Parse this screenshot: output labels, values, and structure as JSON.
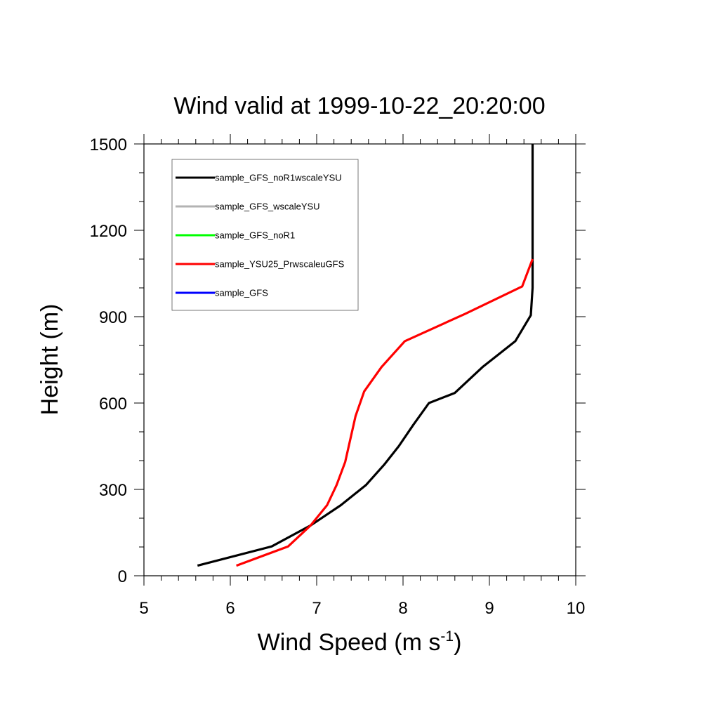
{
  "chart_data": {
    "type": "line",
    "title": "Wind valid at 1999-10-22_20:20:00",
    "xlabel": "Wind Speed (m s",
    "xlabel_superscript": "-1",
    "xlabel_suffix": ")",
    "ylabel": "Height (m)",
    "xlim": [
      5,
      10
    ],
    "ylim": [
      0,
      1500
    ],
    "x_ticks": [
      5,
      6,
      7,
      8,
      9,
      10
    ],
    "y_ticks": [
      0,
      300,
      600,
      900,
      1200,
      1500
    ],
    "grid": false,
    "legend_position": "top-left",
    "series": [
      {
        "name": "sample_GFS_noR1wscaleYSU",
        "color": "#000000",
        "points": [
          [
            5.62,
            35
          ],
          [
            6.48,
            102
          ],
          [
            6.93,
            175
          ],
          [
            7.28,
            245
          ],
          [
            7.57,
            315
          ],
          [
            7.78,
            385
          ],
          [
            7.95,
            450
          ],
          [
            8.12,
            525
          ],
          [
            8.3,
            600
          ],
          [
            8.6,
            635
          ],
          [
            8.92,
            725
          ],
          [
            9.3,
            815
          ],
          [
            9.48,
            905
          ],
          [
            9.5,
            1000
          ],
          [
            9.5,
            1100
          ],
          [
            9.5,
            1200
          ],
          [
            9.5,
            1300
          ],
          [
            9.5,
            1400
          ],
          [
            9.5,
            1500
          ]
        ]
      },
      {
        "name": "sample_GFS_wscaleYSU",
        "color": "#b3b3b3",
        "points": []
      },
      {
        "name": "sample_GFS_noR1",
        "color": "#00ff00",
        "points": []
      },
      {
        "name": "sample_YSU25_PrwscaleuGFS",
        "color": "#ff0000",
        "points": [
          [
            6.07,
            35
          ],
          [
            6.67,
            102
          ],
          [
            6.93,
            175
          ],
          [
            7.12,
            245
          ],
          [
            7.23,
            315
          ],
          [
            7.33,
            395
          ],
          [
            7.45,
            555
          ],
          [
            7.55,
            640
          ],
          [
            7.75,
            725
          ],
          [
            8.02,
            815
          ],
          [
            8.72,
            910
          ],
          [
            9.38,
            1005
          ],
          [
            9.5,
            1100
          ]
        ]
      },
      {
        "name": "sample_GFS",
        "color": "#0000ff",
        "points": []
      }
    ]
  }
}
